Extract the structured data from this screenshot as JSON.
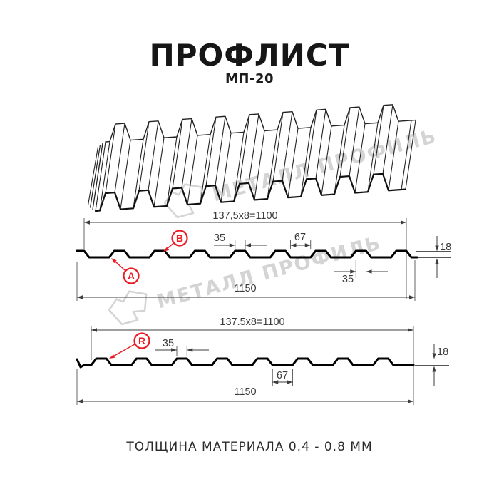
{
  "header": {
    "title": "ПРОФЛИСТ",
    "subtitle": "МП-20"
  },
  "watermark": {
    "text": "МЕТАЛЛ ПРОФИЛЬ"
  },
  "footer": {
    "text": "ТОЛЩИНА МАТЕРИАЛА 0.4 - 0.8 ММ"
  },
  "colors": {
    "red": "#ec1c24",
    "profile_line": "#000000",
    "dim_line": "#3d3d3d",
    "watermark": "#d4d4d4"
  },
  "profile_spec": {
    "name": "МП-20",
    "pitch_formula": "137,5x8=1100",
    "overall_width_mm": "1150",
    "rib_top_width_mm": "35",
    "valley_width_mm": "67",
    "profile_height_mm": "18",
    "thickness_note": "0.4 - 0.8 ММ"
  },
  "section_top": {
    "dim_pitch": "137,5x8=1100",
    "dim_total": "1150",
    "dim_rib_top": "35",
    "dim_valley": "67",
    "dim_height": "18",
    "dim_rib_bottom": "35",
    "label_a": "A",
    "label_b": "B"
  },
  "section_bottom": {
    "dim_pitch": "137.5x8=1100",
    "dim_total": "1150",
    "dim_rib_top": "35",
    "dim_valley": "67",
    "dim_height": "18",
    "label_r": "R"
  }
}
